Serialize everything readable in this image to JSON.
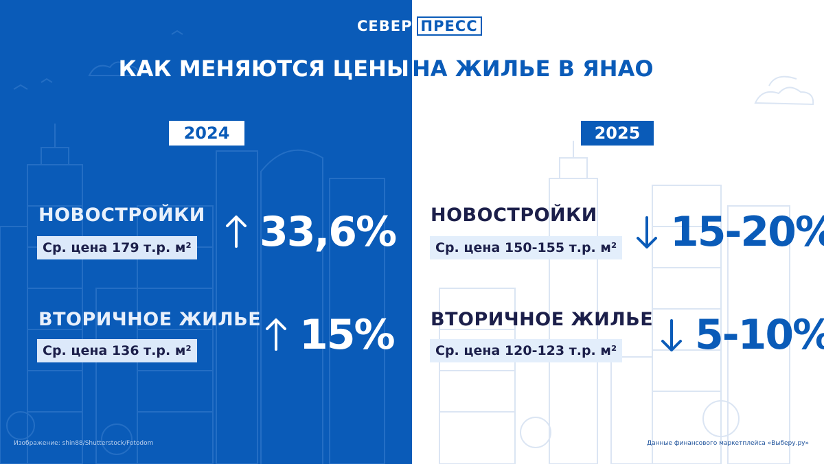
{
  "logo": {
    "part1": "СЕВЕР",
    "part2": "ПРЕСС"
  },
  "title": {
    "left": "КАК МЕНЯЮТСЯ ЦЕНЫ",
    "right": "НА ЖИЛЬЕ В ЯНАО"
  },
  "years": {
    "left": "2024",
    "right": "2025"
  },
  "left": {
    "new": {
      "label": "НОВОСТРОЙКИ",
      "price": "Ср. цена 179 т.р. м²",
      "change": "33,6%",
      "direction": "up"
    },
    "secondary": {
      "label": "ВТОРИЧНОЕ ЖИЛЬЕ",
      "price": "Ср. цена 136 т.р. м²",
      "change": "15%",
      "direction": "up"
    }
  },
  "right": {
    "new": {
      "label": "НОВОСТРОЙКИ",
      "price": "Ср. цена 150-155 т.р. м²",
      "change": "15-20%",
      "direction": "down"
    },
    "secondary": {
      "label": "ВТОРИЧНОЕ ЖИЛЬЕ",
      "price": "Ср. цена 120-123 т.р. м²",
      "change": "5-10%",
      "direction": "down"
    }
  },
  "credits": {
    "image": "Изображение: shin88/Shutterstock/Fotodom",
    "source": "Данные финансового маркетплейса «Выберу.ру»"
  },
  "colors": {
    "brand_blue": "#0a5bb8",
    "navy_text": "#1c1f4a",
    "white": "#ffffff"
  },
  "icons": {
    "up": "arrow-up-icon",
    "down": "arrow-down-icon"
  }
}
